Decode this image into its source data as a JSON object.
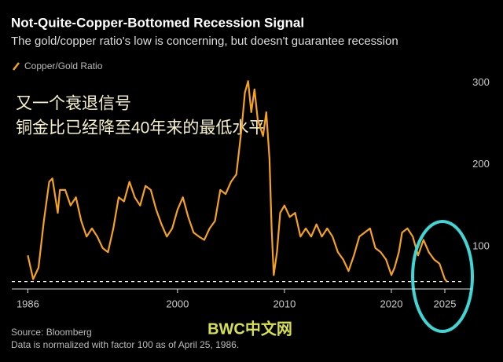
{
  "chart_data": {
    "type": "line",
    "title": "Not-Quite-Copper-Bottomed Recession Signal",
    "subtitle": "The gold/copper ratio's low is concerning, but doesn't guarantee recession",
    "annotations": [
      "又一个衰退信号",
      "铜金比已经降至40年来的最低水平"
    ],
    "source": "Source: Bloomberg",
    "note": "Data is normalized with factor 100 as of April 25, 1986.",
    "watermark": "BWC中文网",
    "x": [
      1986.0,
      1986.5,
      1987.0,
      1987.5,
      1988.0,
      1988.3,
      1988.8,
      1989.0,
      1989.5,
      1990.0,
      1990.5,
      1991.0,
      1991.5,
      1992.0,
      1992.5,
      1993.0,
      1993.5,
      1994.0,
      1994.5,
      1995.0,
      1995.5,
      1996.0,
      1996.5,
      1997.0,
      1997.5,
      1998.0,
      1998.5,
      1999.0,
      1999.5,
      2000.0,
      2000.5,
      2001.0,
      2001.5,
      2002.0,
      2002.5,
      2003.0,
      2003.5,
      2004.0,
      2004.5,
      2005.0,
      2005.5,
      2006.0,
      2006.3,
      2006.6,
      2006.9,
      2007.2,
      2007.5,
      2008.0,
      2008.3,
      2008.6,
      2008.8,
      2009.0,
      2009.3,
      2009.6,
      2010.0,
      2010.5,
      2011.0,
      2011.5,
      2012.0,
      2012.5,
      2013.0,
      2013.5,
      2014.0,
      2014.5,
      2015.0,
      2015.5,
      2016.0,
      2016.5,
      2017.0,
      2017.5,
      2018.0,
      2018.5,
      2019.0,
      2019.5,
      2020.0,
      2020.3,
      2020.7,
      2021.0,
      2021.5,
      2022.0,
      2022.5,
      2023.0,
      2023.5,
      2024.0,
      2024.5,
      2025.0,
      2025.2
    ],
    "series": [
      {
        "name": "Copper/Gold Ratio",
        "color": "#f7a21b",
        "values": [
          89,
          60,
          74,
          131,
          179,
          183,
          141,
          169,
          169,
          150,
          160,
          131,
          112,
          122,
          112,
          98,
          93,
          122,
          160,
          155,
          179,
          160,
          150,
          174,
          169,
          145,
          127,
          112,
          122,
          145,
          160,
          136,
          117,
          112,
          108,
          122,
          131,
          169,
          164,
          179,
          188,
          245,
          288,
          302,
          264,
          292,
          255,
          235,
          264,
          207,
          122,
          65,
          93,
          141,
          150,
          136,
          141,
          112,
          122,
          112,
          127,
          112,
          122,
          112,
          93,
          84,
          70,
          89,
          112,
          117,
          122,
          98,
          93,
          84,
          65,
          74,
          93,
          117,
          122,
          112,
          89,
          108,
          93,
          84,
          79,
          60,
          57
        ]
      }
    ],
    "hline": 57,
    "xlim": [
      1984.5,
      2027.5
    ],
    "xticks": [
      1986,
      2000,
      2010,
      2020,
      2025
    ],
    "ylim": [
      48,
      310
    ],
    "yticks": [
      100,
      200,
      300
    ],
    "grid": false
  }
}
